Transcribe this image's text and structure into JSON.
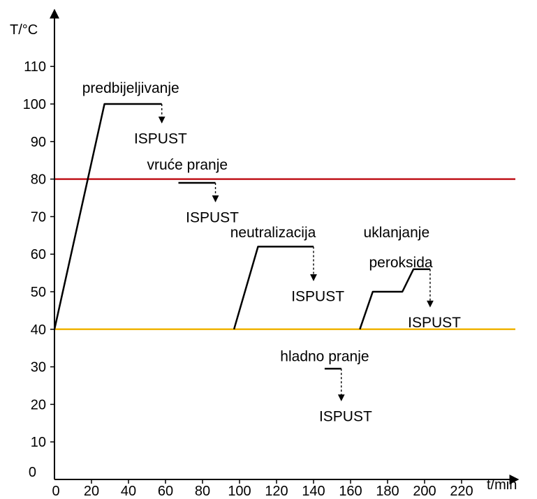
{
  "chart_data": {
    "type": "line",
    "ylabel": "T/°C",
    "xlabel": "t/min",
    "xlim": [
      0,
      230
    ],
    "ylim": [
      0,
      118
    ],
    "x_ticks": [
      0,
      20,
      40,
      60,
      80,
      100,
      120,
      140,
      160,
      180,
      200,
      220
    ],
    "y_ticks": [
      0,
      10,
      20,
      30,
      40,
      50,
      60,
      70,
      80,
      90,
      100,
      110
    ],
    "grid": false,
    "reference_lines": [
      {
        "y": 80,
        "color": "#c0141c"
      },
      {
        "y": 40,
        "color": "#f0b400"
      }
    ],
    "segments": [
      {
        "points": [
          [
            0,
            40
          ],
          [
            27,
            100
          ],
          [
            58,
            100
          ]
        ],
        "drain": {
          "x": 58,
          "y_from": 100,
          "y_to": 95
        }
      },
      {
        "points": [
          [
            67,
            79
          ],
          [
            87,
            79
          ]
        ],
        "drain": {
          "x": 87,
          "y_from": 79,
          "y_to": 74
        }
      },
      {
        "points": [
          [
            97,
            40
          ],
          [
            110,
            62
          ],
          [
            140,
            62
          ]
        ],
        "drain": {
          "x": 140,
          "y_from": 62,
          "y_to": 53
        }
      },
      {
        "points": [
          [
            165,
            40
          ],
          [
            172,
            50
          ],
          [
            188,
            50
          ],
          [
            194,
            56
          ],
          [
            203,
            56
          ]
        ],
        "drain": {
          "x": 203,
          "y_from": 56,
          "y_to": 46
        }
      },
      {
        "points": [
          [
            146,
            29.5
          ],
          [
            155,
            29.5
          ]
        ],
        "drain": {
          "x": 155,
          "y_from": 29.5,
          "y_to": 21
        }
      }
    ],
    "annotations": [
      {
        "text": "predbijeljivanje",
        "x": 15,
        "y": 103
      },
      {
        "text": "ISPUST",
        "x": 43,
        "y": 89.5
      },
      {
        "text": "vruće pranje",
        "x": 50,
        "y": 82.5
      },
      {
        "text": "ISPUST",
        "x": 71,
        "y": 68.5
      },
      {
        "text": "neutralizacija",
        "x": 95,
        "y": 64.5
      },
      {
        "text": "ISPUST",
        "x": 128,
        "y": 47.5
      },
      {
        "text": "uklanjanje",
        "x": 167,
        "y": 64.5
      },
      {
        "text": "peroksida",
        "x": 170,
        "y": 56.5
      },
      {
        "text": "ISPUST",
        "x": 191,
        "y": 40.5
      },
      {
        "text": "hladno pranje",
        "x": 122,
        "y": 31.5
      },
      {
        "text": "ISPUST",
        "x": 143,
        "y": 15.5
      }
    ]
  }
}
